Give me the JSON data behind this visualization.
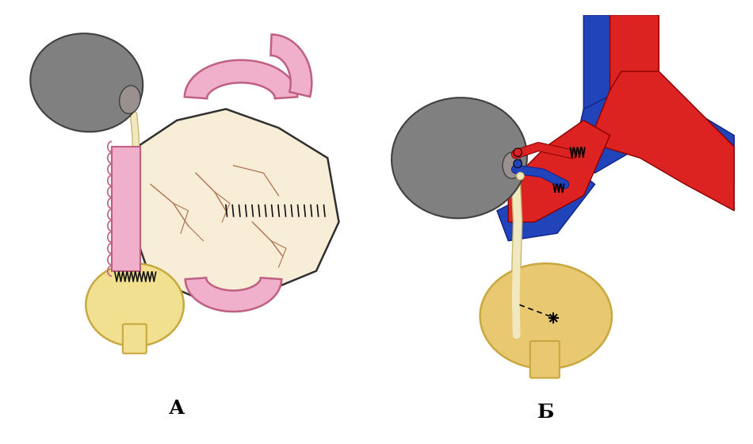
{
  "bg_color": "#ffffff",
  "label_A": "А",
  "label_B": "Б",
  "label_fontsize": 18,
  "kidney_color": "#808080",
  "kidney_outline": "#404040",
  "bladder_color_A": "#f0e090",
  "bladder_color_B": "#e8c870",
  "bladder_outline": "#c8a840",
  "ureter_fill": "#f0e8c0",
  "ureter_outline": "#c8b870",
  "intestine_fill": "#f0b0cc",
  "intestine_outline": "#c06080",
  "flap_fill": "#f8eed8",
  "flap_outline": "#303030",
  "vessel_fill": "#c09060",
  "suture_color": "#101010",
  "artery_fill": "#dd2222",
  "artery_outline": "#880000",
  "vein_fill": "#2244bb",
  "vein_outline": "#112288"
}
